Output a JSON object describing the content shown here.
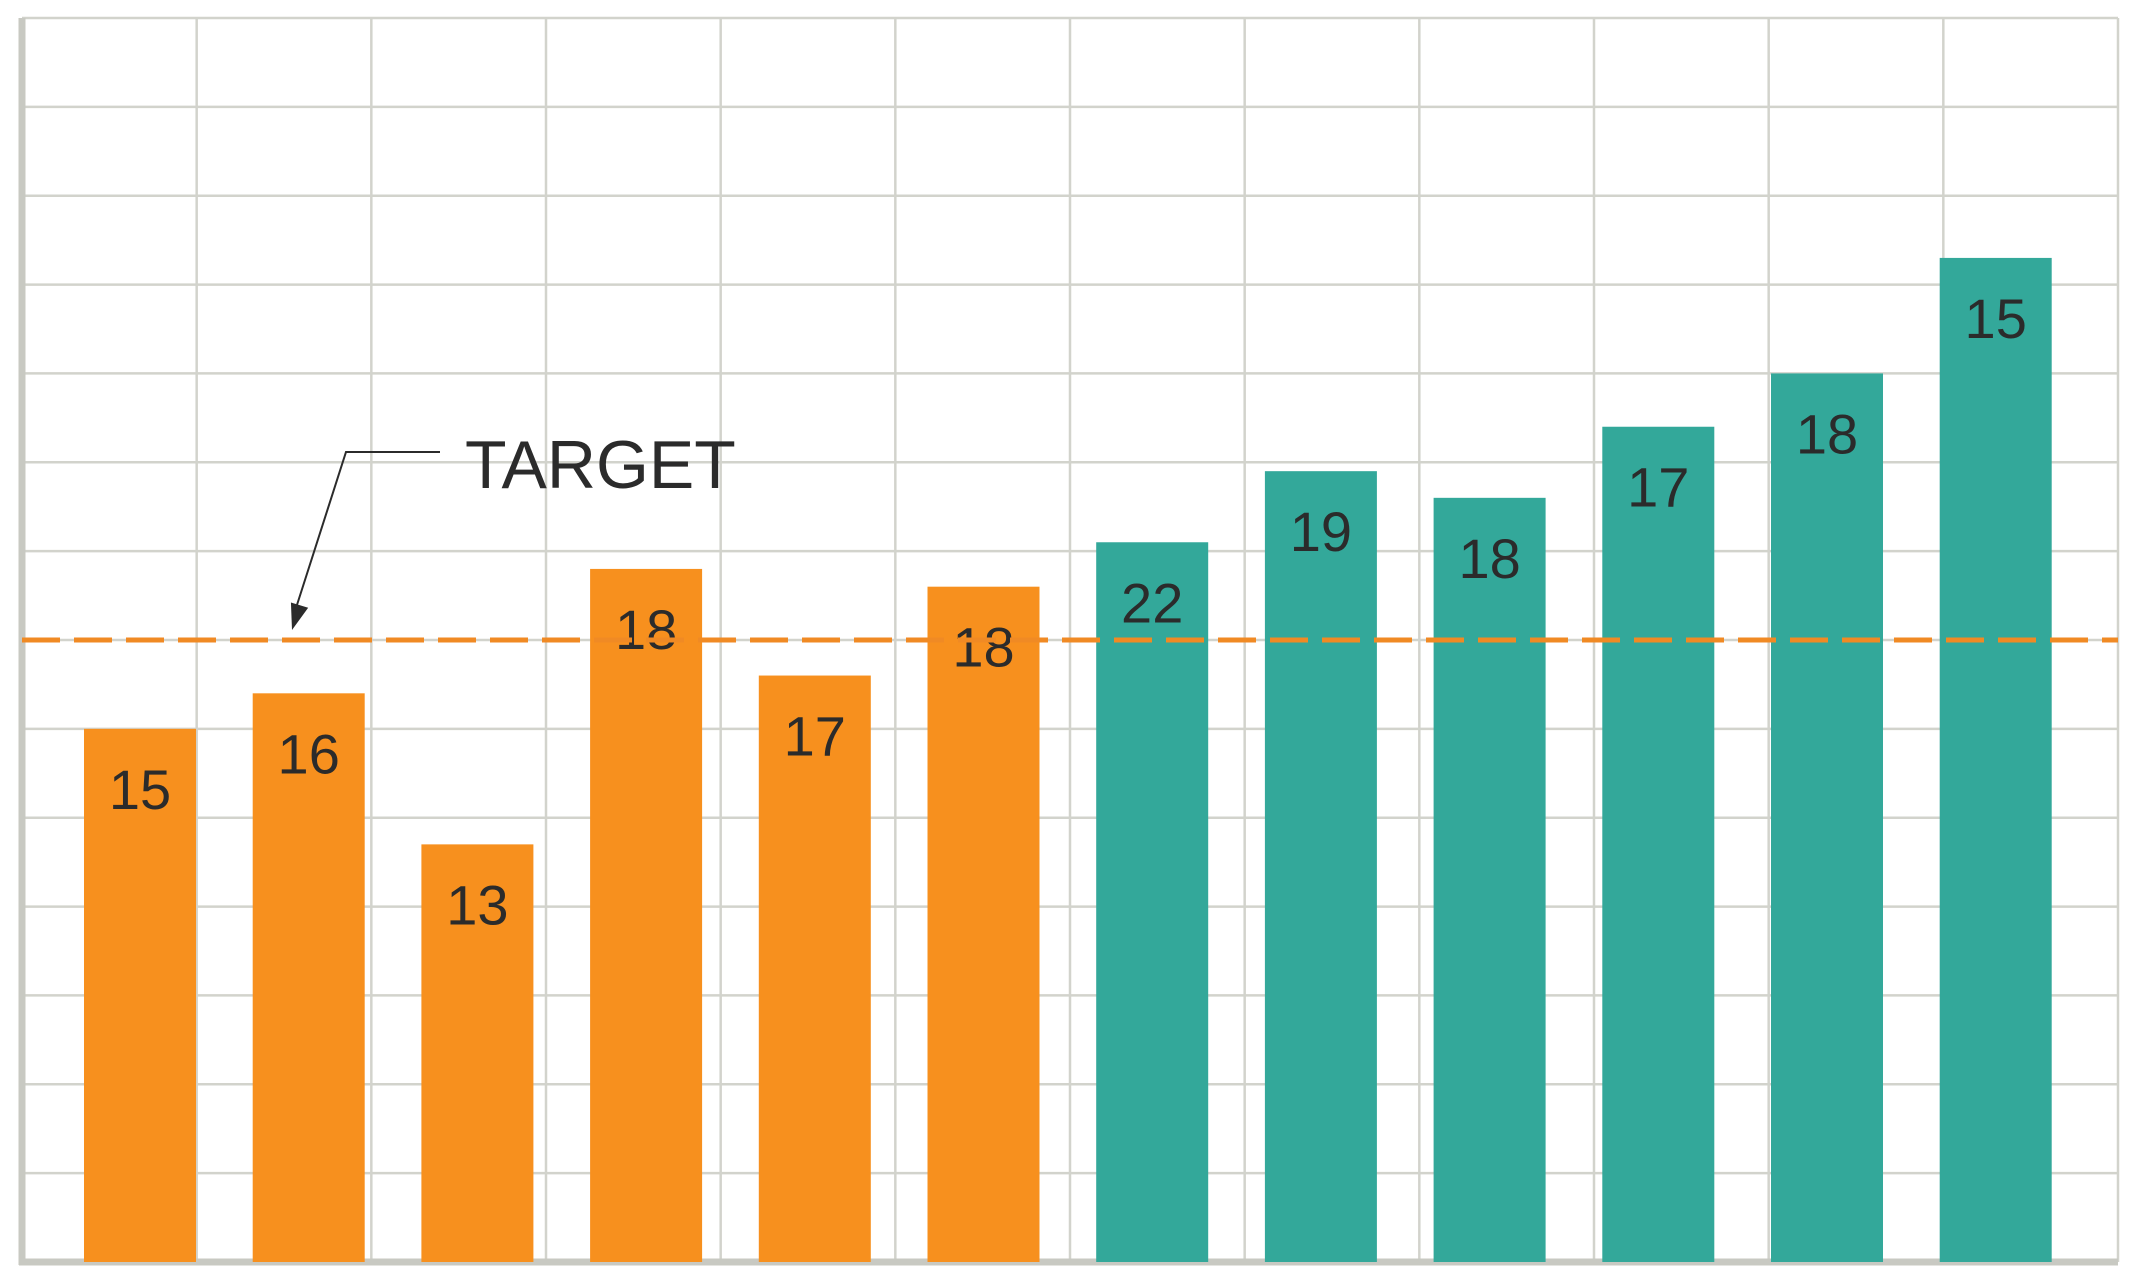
{
  "chart_data": {
    "type": "bar",
    "title": "",
    "xlabel": "",
    "ylabel": "",
    "ylim": [
      0,
      14
    ],
    "grid": true,
    "bar_heights": [
      6.0,
      6.4,
      4.7,
      7.8,
      6.6,
      7.6,
      8.1,
      8.9,
      8.6,
      9.4,
      10.0,
      11.3
    ],
    "labels": [
      "15",
      "16",
      "13",
      "18",
      "17",
      "18",
      "22",
      "19",
      "18",
      "17",
      "18",
      "15"
    ],
    "bar_colors": [
      "#f7901e",
      "#f7901e",
      "#f7901e",
      "#f7901e",
      "#f7901e",
      "#f7901e",
      "#33a89a",
      "#33a89a",
      "#33a89a",
      "#33a89a",
      "#33a89a",
      "#33a89a"
    ],
    "target": {
      "value": 7.0,
      "label": "TARGET",
      "color": "#f08a24"
    }
  },
  "colors": {
    "orange": "#f7901e",
    "teal": "#33a89a",
    "grid": "#d2d3cc",
    "axis": "#c8c9c2",
    "text": "#2b2b2b"
  }
}
